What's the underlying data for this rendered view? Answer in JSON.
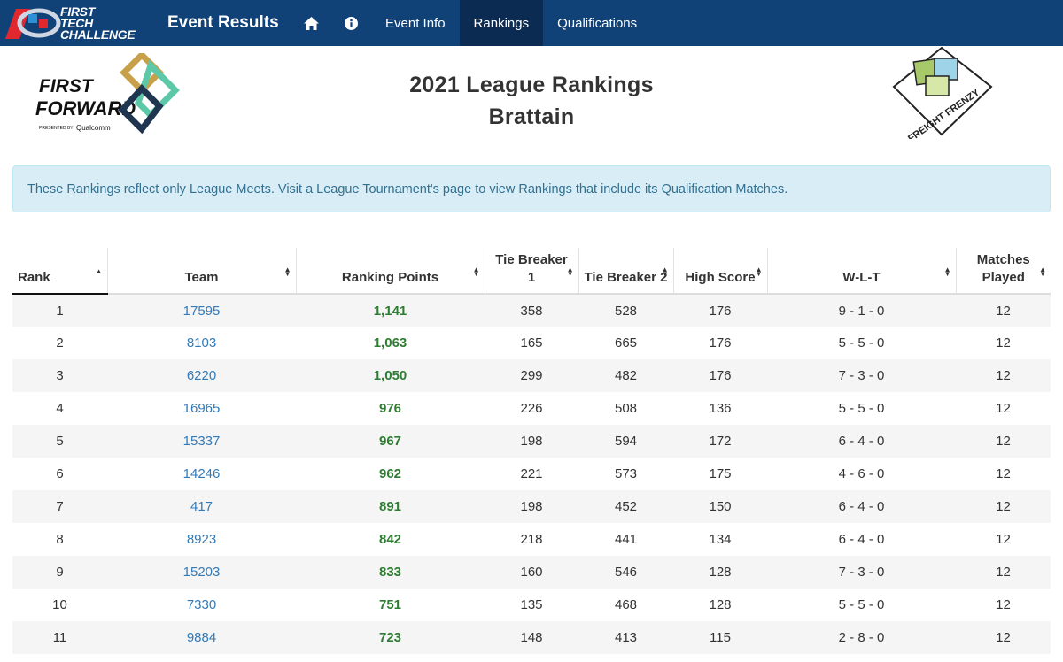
{
  "navbar": {
    "brand_lines": [
      "FIRST",
      "TECH",
      "CHALLENGE"
    ],
    "title": "Event Results",
    "home_icon": "home-icon",
    "info_icon": "info-icon",
    "links": [
      {
        "label": "Event Info",
        "active": false
      },
      {
        "label": "Rankings",
        "active": true
      },
      {
        "label": "Qualifications",
        "active": false
      }
    ]
  },
  "header": {
    "title_line1": "2021 League Rankings",
    "title_line2": "Brattain",
    "left_logo_text": [
      "FIRST",
      "FORWARD",
      "PRESENTED BY",
      "Qualcomm"
    ],
    "right_logo_text": "FREIGHT FRENZY"
  },
  "alert": {
    "text": "These Rankings reflect only League Meets. Visit a League Tournament's page to view Rankings that include its Qualification Matches."
  },
  "table": {
    "columns": [
      {
        "label": "Rank",
        "sort": "asc"
      },
      {
        "label": "Team",
        "sort": "both"
      },
      {
        "label": "Ranking Points",
        "sort": "both"
      },
      {
        "label": "Tie Breaker 1",
        "sort": "both"
      },
      {
        "label": "Tie Breaker 2",
        "sort": "both"
      },
      {
        "label": "High Score",
        "sort": "both"
      },
      {
        "label": "W-L-T",
        "sort": "both"
      },
      {
        "label": "Matches Played",
        "sort": "both"
      }
    ],
    "rows": [
      [
        "1",
        "17595",
        "1,141",
        "358",
        "528",
        "176",
        "9 - 1 - 0",
        "12"
      ],
      [
        "2",
        "8103",
        "1,063",
        "165",
        "665",
        "176",
        "5 - 5 - 0",
        "12"
      ],
      [
        "3",
        "6220",
        "1,050",
        "299",
        "482",
        "176",
        "7 - 3 - 0",
        "12"
      ],
      [
        "4",
        "16965",
        "976",
        "226",
        "508",
        "136",
        "5 - 5 - 0",
        "12"
      ],
      [
        "5",
        "15337",
        "967",
        "198",
        "594",
        "172",
        "6 - 4 - 0",
        "12"
      ],
      [
        "6",
        "14246",
        "962",
        "221",
        "573",
        "175",
        "4 - 6 - 0",
        "12"
      ],
      [
        "7",
        "417",
        "891",
        "198",
        "452",
        "150",
        "6 - 4 - 0",
        "12"
      ],
      [
        "8",
        "8923",
        "842",
        "218",
        "441",
        "134",
        "6 - 4 - 0",
        "12"
      ],
      [
        "9",
        "15203",
        "833",
        "160",
        "546",
        "128",
        "7 - 3 - 0",
        "12"
      ],
      [
        "10",
        "7330",
        "751",
        "135",
        "468",
        "128",
        "5 - 5 - 0",
        "12"
      ],
      [
        "11",
        "9884",
        "723",
        "148",
        "413",
        "115",
        "2 - 8 - 0",
        "12"
      ]
    ]
  },
  "colors": {
    "navbar": "#104177",
    "navbar_active": "#0b2b53",
    "link": "#337ab7",
    "ranking_points": "#2e7d32",
    "alert_bg": "#d9edf7",
    "alert_text": "#31708f"
  }
}
